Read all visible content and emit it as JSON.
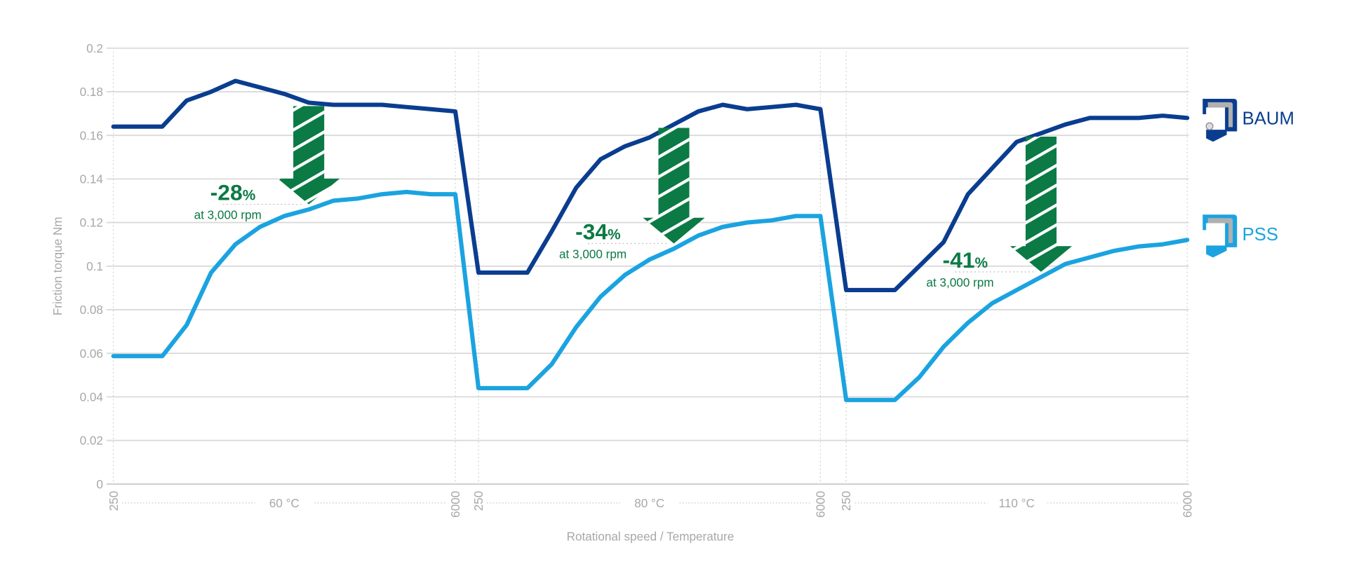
{
  "chart_data": {
    "type": "line",
    "ylabel": "Friction torque  Nm",
    "xlabel": "Rotational speed / Temperature",
    "ylim": [
      0,
      0.2
    ],
    "yticks": [
      "0",
      "0.02",
      "0.04",
      "0.06",
      "0.08",
      "0.1",
      "0.12",
      "0.14",
      "0.16",
      "0.18",
      "0.2"
    ],
    "grid": true,
    "legend": "right",
    "segments": [
      {
        "temperature": "60 °C",
        "start_label": "250",
        "end_label": "6000"
      },
      {
        "temperature": "80 °C",
        "start_label": "250",
        "end_label": "6000"
      },
      {
        "temperature": "110 °C",
        "start_label": "250",
        "end_label": "6000"
      }
    ],
    "series": [
      {
        "name": "BAUM",
        "color": "#0a3d8f",
        "values": [
          [
            0.164,
            0.164,
            0.164,
            0.176,
            0.18,
            0.185,
            0.182,
            0.179,
            0.175,
            0.174,
            0.174,
            0.174,
            0.173,
            0.172,
            0.171
          ],
          [
            0.097,
            0.097,
            0.097,
            0.116,
            0.136,
            0.149,
            0.155,
            0.159,
            0.165,
            0.171,
            0.174,
            0.172,
            0.173,
            0.174,
            0.172
          ],
          [
            0.089,
            0.089,
            0.089,
            0.1,
            0.111,
            0.133,
            0.145,
            0.157,
            0.161,
            0.165,
            0.168,
            0.168,
            0.168,
            0.169,
            0.168
          ]
        ]
      },
      {
        "name": "PSS",
        "color": "#1ba3e0",
        "values": [
          [
            0.0587,
            0.0587,
            0.0587,
            0.073,
            0.097,
            0.11,
            0.118,
            0.123,
            0.126,
            0.13,
            0.131,
            0.133,
            0.134,
            0.133,
            0.133
          ],
          [
            0.044,
            0.044,
            0.044,
            0.055,
            0.072,
            0.086,
            0.096,
            0.103,
            0.108,
            0.114,
            0.118,
            0.12,
            0.121,
            0.123,
            0.123
          ],
          [
            0.0386,
            0.0386,
            0.0386,
            0.049,
            0.063,
            0.074,
            0.083,
            0.089,
            0.095,
            0.101,
            0.104,
            0.107,
            0.109,
            0.11,
            0.112
          ]
        ]
      }
    ],
    "annotations": [
      {
        "segment": 0,
        "point": 8,
        "text": "-28",
        "unit": "%",
        "subtext": "at 3,000 rpm"
      },
      {
        "segment": 1,
        "point": 8,
        "text": "-34",
        "unit": "%",
        "subtext": "at 3,000 rpm"
      },
      {
        "segment": 2,
        "point": 8,
        "text": "-41",
        "unit": "%",
        "subtext": "at 3,000 rpm"
      }
    ],
    "annotation_color": "#0b7a45"
  }
}
